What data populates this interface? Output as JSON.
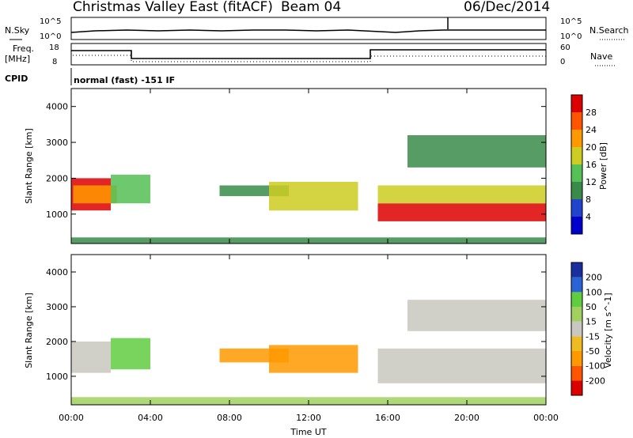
{
  "header": {
    "title": "Christmas Valley East (fitACF)",
    "beam": "Beam 04",
    "date": "06/Dec/2014"
  },
  "noise_panel": {
    "left_label": "N.Sky",
    "left_ticks": [
      "10^5",
      "10^0"
    ],
    "right_label": "N.Search",
    "right_ticks": [
      "10^5",
      "10^0"
    ]
  },
  "freq_panel": {
    "left_label_1": "Freq.",
    "left_label_2": "[MHz]",
    "left_ticks": [
      "18",
      "8"
    ],
    "right_label": "Nave",
    "right_ticks": [
      "60",
      "0"
    ]
  },
  "cpid": {
    "label": "CPID",
    "text": "normal (fast) -151 IF"
  },
  "colors": {
    "power": [
      "#0000cc",
      "#2244cc",
      "#3a8a4a",
      "#55c055",
      "#cccc22",
      "#ff9900",
      "#ff5500",
      "#dd0000"
    ],
    "velocity": [
      "#1a2ea0",
      "#2a62d8",
      "#60cc40",
      "#a0d060",
      "#c8c8c0",
      "#eebb22",
      "#ff9900",
      "#ff5500",
      "#dd0000"
    ]
  },
  "chart_data": [
    {
      "type": "heatmap",
      "name": "power",
      "xlabel": "",
      "ylabel": "Slant Range [km]",
      "x_ticks": [
        "00:00",
        "04:00",
        "08:00",
        "12:00",
        "16:00",
        "20:00",
        "00:00"
      ],
      "y_ticks": [
        "1000",
        "2000",
        "3000",
        "4000"
      ],
      "ylim": [
        180,
        4500
      ],
      "colorbar_label": "Power [dB]",
      "colorbar_ticks": [
        "4",
        "8",
        "12",
        "16",
        "20",
        "24",
        "28"
      ],
      "regions": [
        {
          "t0": 0.0,
          "t1": 2.0,
          "r0": 1100,
          "r1": 2000,
          "level": 7
        },
        {
          "t0": 0.1,
          "t1": 2.3,
          "r0": 1300,
          "r1": 1800,
          "level": 5
        },
        {
          "t0": 2.0,
          "t1": 4.0,
          "r0": 1300,
          "r1": 2100,
          "level": 3
        },
        {
          "t0": 7.5,
          "t1": 11.0,
          "r0": 1500,
          "r1": 1800,
          "level": 2
        },
        {
          "t0": 10.0,
          "t1": 14.5,
          "r0": 1100,
          "r1": 1900,
          "level": 4
        },
        {
          "t0": 15.5,
          "t1": 24.0,
          "r0": 800,
          "r1": 1300,
          "level": 7
        },
        {
          "t0": 15.5,
          "t1": 24.0,
          "r0": 1300,
          "r1": 1800,
          "level": 4
        },
        {
          "t0": 17.0,
          "t1": 24.0,
          "r0": 2300,
          "r1": 3200,
          "level": 2
        },
        {
          "t0": 0.0,
          "t1": 24.0,
          "r0": 180,
          "r1": 350,
          "level": 2
        }
      ]
    },
    {
      "type": "heatmap",
      "name": "velocity",
      "xlabel": "Time UT",
      "ylabel": "Slant Range [km]",
      "x_ticks": [
        "00:00",
        "04:00",
        "08:00",
        "12:00",
        "16:00",
        "20:00",
        "00:00"
      ],
      "y_ticks": [
        "1000",
        "2000",
        "3000",
        "4000"
      ],
      "ylim": [
        180,
        4500
      ],
      "colorbar_label": "Velocity [m s^-1]",
      "colorbar_ticks": [
        "200",
        "100",
        "50",
        "15",
        "-15",
        "-50",
        "-100",
        "-200"
      ],
      "regions": [
        {
          "t0": 0.0,
          "t1": 2.0,
          "r0": 1100,
          "r1": 2000,
          "level": 4
        },
        {
          "t0": 2.0,
          "t1": 4.0,
          "r0": 1200,
          "r1": 2100,
          "level": 2
        },
        {
          "t0": 7.5,
          "t1": 11.0,
          "r0": 1400,
          "r1": 1800,
          "level": 6
        },
        {
          "t0": 10.0,
          "t1": 14.5,
          "r0": 1100,
          "r1": 1900,
          "level": 6
        },
        {
          "t0": 15.5,
          "t1": 24.0,
          "r0": 800,
          "r1": 1800,
          "level": 4
        },
        {
          "t0": 17.0,
          "t1": 24.0,
          "r0": 2300,
          "r1": 3200,
          "level": 4
        },
        {
          "t0": 0.0,
          "t1": 24.0,
          "r0": 180,
          "r1": 400,
          "level": 3
        }
      ]
    }
  ]
}
